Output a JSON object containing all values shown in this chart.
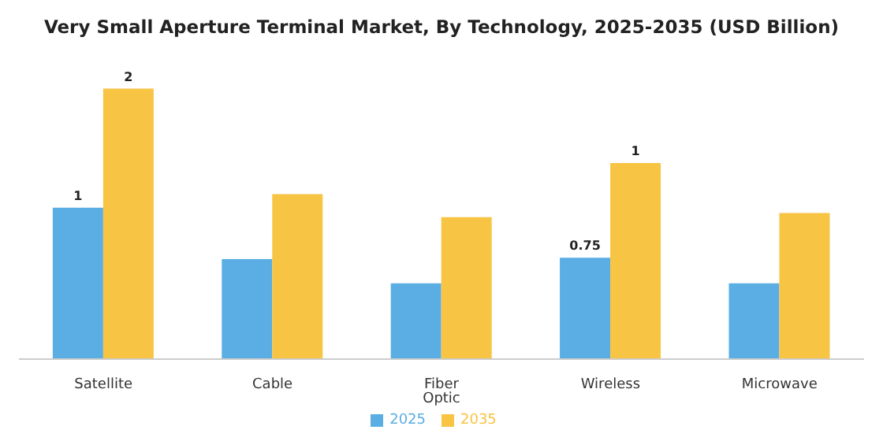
{
  "chart_data": {
    "type": "bar",
    "title": "Very Small Aperture Terminal Market, By Technology, 2025-2035 (USD Billion)",
    "categories": [
      "Satellite",
      "Cable",
      "Fiber Optic",
      "Wireless",
      "Microwave"
    ],
    "series": [
      {
        "name": "2025",
        "color": "#5aaee3",
        "values": [
          1.12,
          0.74,
          0.56,
          0.75,
          0.56
        ],
        "value_labels": [
          "1",
          null,
          null,
          "0.75",
          null
        ]
      },
      {
        "name": "2035",
        "color": "#f7c444",
        "values": [
          2,
          1.22,
          1.05,
          1.45,
          1.08
        ],
        "value_labels": [
          "2",
          null,
          null,
          "1",
          null
        ]
      }
    ],
    "legend": "bottom",
    "grid": false
  }
}
